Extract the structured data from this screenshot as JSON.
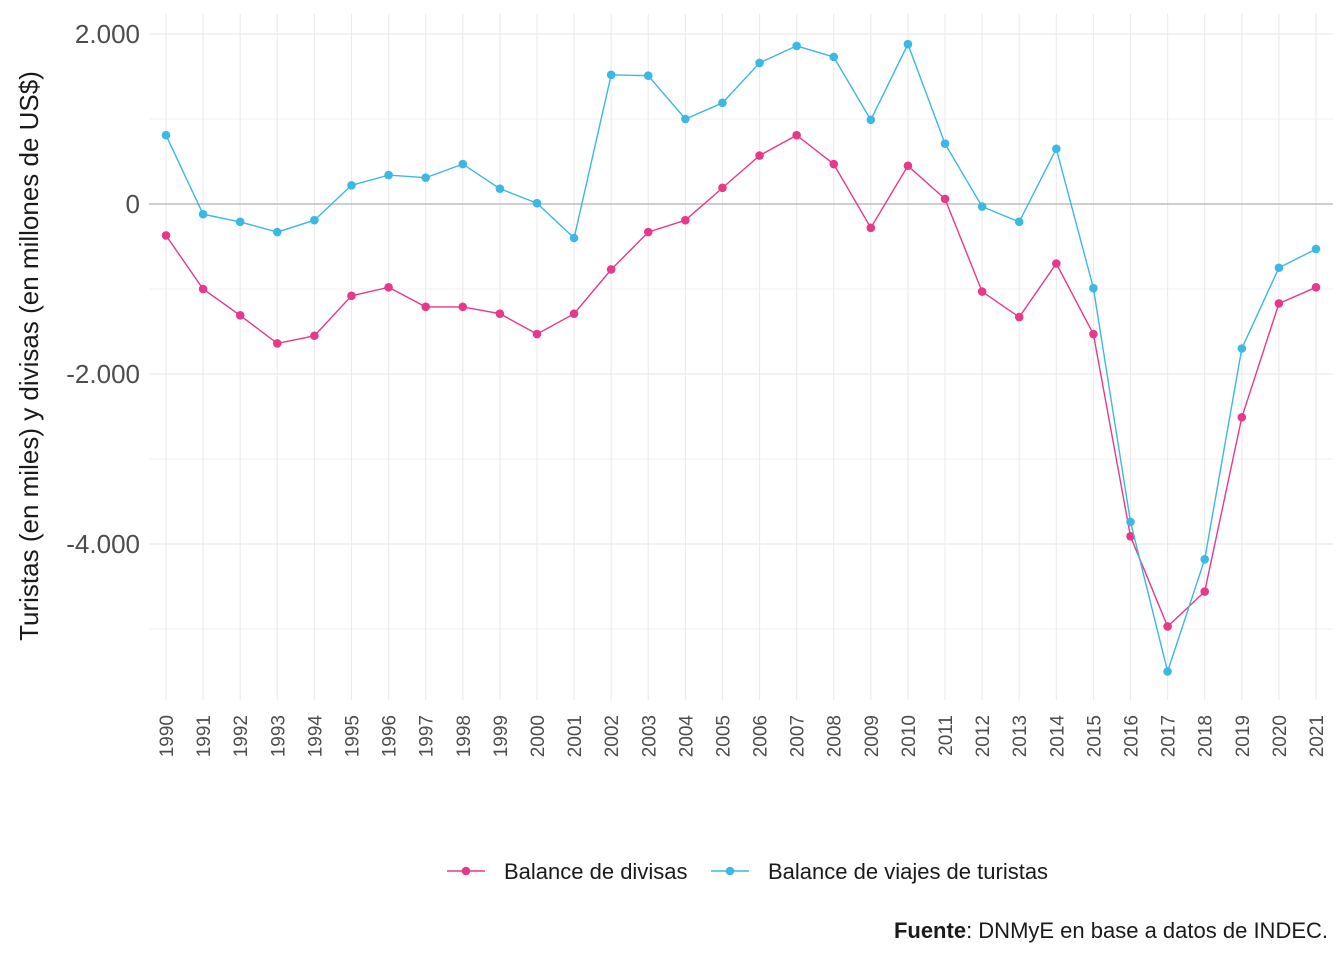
{
  "chart_data": {
    "type": "line",
    "title": "",
    "xlabel": "",
    "ylabel": "Turistas (en miles) y divisas (en millones de US$)",
    "x": [
      "1990",
      "1991",
      "1992",
      "1993",
      "1994",
      "1995",
      "1996",
      "1997",
      "1998",
      "1999",
      "2000",
      "2001",
      "2002",
      "2003",
      "2004",
      "2005",
      "2006",
      "2007",
      "2008",
      "2009",
      "2010",
      "2011",
      "2012",
      "2013",
      "2014",
      "2015",
      "2016",
      "2017",
      "2018",
      "2019",
      "2020",
      "2021"
    ],
    "ylim": [
      -5850,
      2250
    ],
    "yticks": [
      2000,
      0,
      -2000,
      -4000
    ],
    "ytick_labels": [
      "2.000",
      "0",
      "-2.000",
      "-4.000"
    ],
    "grid": true,
    "legend_position": "bottom",
    "series": [
      {
        "name": "Balance de divisas",
        "color": "#e8388a",
        "values": [
          -370,
          -1000,
          -1310,
          -1640,
          -1550,
          -1080,
          -980,
          -1210,
          -1210,
          -1290,
          -1530,
          -1290,
          -770,
          -330,
          -190,
          190,
          570,
          810,
          470,
          -280,
          450,
          60,
          -1030,
          -1330,
          -700,
          -1530,
          -3910,
          -4970,
          -4560,
          -2510,
          -1170,
          -980
        ]
      },
      {
        "name": "Balance de viajes de turistas",
        "color": "#3bb8e4",
        "values": [
          810,
          -120,
          -210,
          -330,
          -190,
          220,
          340,
          310,
          470,
          180,
          10,
          -400,
          1520,
          1510,
          1000,
          1190,
          1660,
          1860,
          1730,
          990,
          1880,
          710,
          -30,
          -210,
          650,
          -990,
          -3740,
          -5500,
          -4180,
          -1700,
          -750,
          -530
        ]
      }
    ]
  },
  "source": {
    "label": "Fuente",
    "text": ": DNMyE en base a datos de INDEC."
  }
}
